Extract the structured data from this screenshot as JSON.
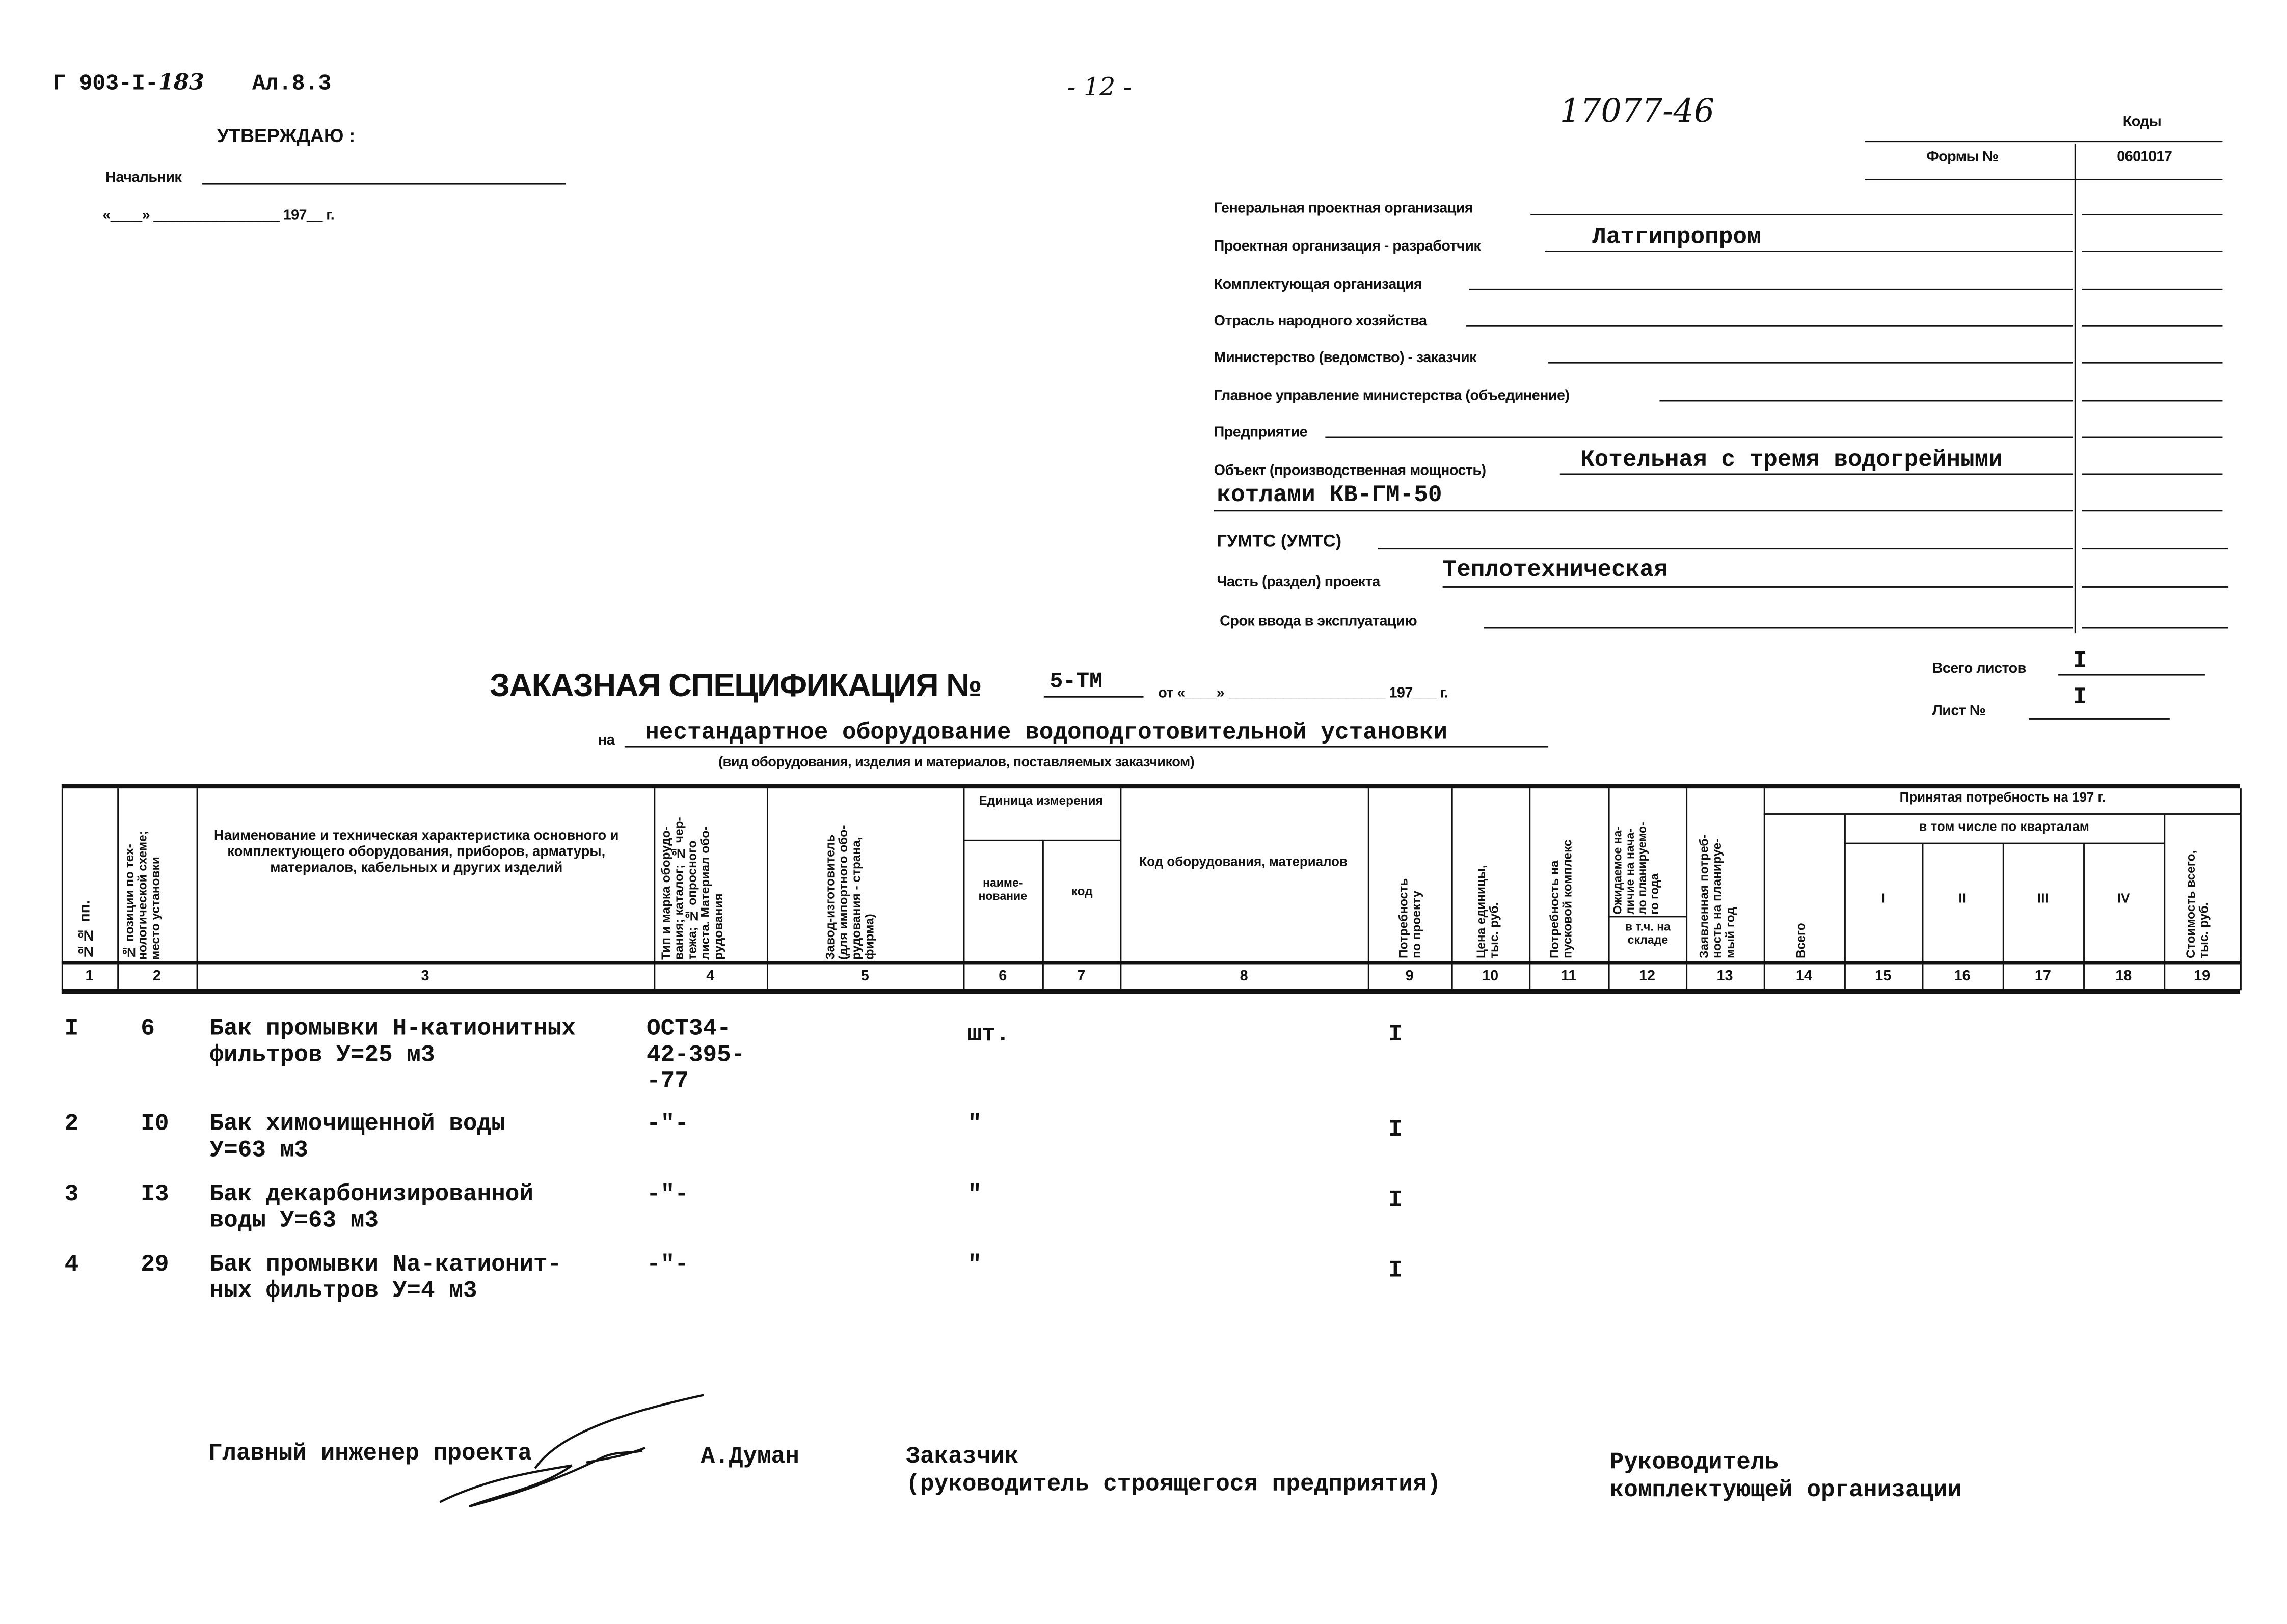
{
  "header": {
    "doc_code_prefix": "Г 903-I-",
    "doc_code_hand": "183",
    "album": "Ал.8.3",
    "page": "- 12 -",
    "inventory": "17077-46",
    "approve": "УТВЕРЖДАЮ :",
    "chief": "Начальник",
    "date_line": "«____» ________________ 197__ г."
  },
  "codes": {
    "title": "Коды",
    "form_label": "Формы №",
    "form_value": "0601017"
  },
  "fields": [
    {
      "label": "Генеральная проектная организация",
      "value": ""
    },
    {
      "label": "Проектная организация - разработчик",
      "value": "Латгипропром"
    },
    {
      "label": "Комплектующая организация",
      "value": ""
    },
    {
      "label": "Отрасль народного хозяйства",
      "value": ""
    },
    {
      "label": "Министерство (ведомство) - заказчик",
      "value": ""
    },
    {
      "label": "Главное управление министерства (объединение)",
      "value": ""
    },
    {
      "label": "Предприятие",
      "value": ""
    },
    {
      "label": "Объект (производственная мощность)",
      "value": "Котельная с тремя водогрейными",
      "value2": "котлами КВ-ГМ-50"
    },
    {
      "label": "ГУМТС (УМТС)",
      "value": ""
    },
    {
      "label": "Часть (раздел) проекта",
      "value": "Теплотехническая"
    },
    {
      "label": "Срок ввода в эксплуатацию",
      "value": ""
    }
  ],
  "spec": {
    "title": "ЗАКАЗНАЯ СПЕЦИФИКАЦИЯ №",
    "number": "5-ТМ",
    "from": "от «____» ____________________ 197___ г.",
    "on": "на",
    "subject": "нестандартное оборудование водоподготовительной установки",
    "subject_note": "(вид оборудования, изделия и материалов, поставляемых заказчиком)",
    "sheets_total_label": "Всего листов",
    "sheets_total": "I",
    "sheet_label": "Лист №",
    "sheet": "I"
  },
  "table": {
    "headers": {
      "c1": "№№ пп.",
      "c2": "№ позиции по тех-\nнологической схеме;\nместо установки",
      "c3": "Наименование и техническая характеристика основного и комплектующего оборудования, приборов, арматуры, материалов, кабельных и других изделий",
      "c4": "Тип и марка оборудо-\nвания; каталог; № чер-\nтежа; № опросного\nлиста. Материал обо-\nрудования",
      "c5": "Завод-изготовитель\n(для импортного обо-\nрудования - страна,\nфирма)",
      "unit": "Единица измерения",
      "c6": "наиме-нование",
      "c7": "код",
      "c8": "Код оборудования, материалов",
      "c9": "Потребность\nпо проекту",
      "c10": "Цена единицы,\nтыс. руб.",
      "c11": "Потребность на\nпусковой комплекс",
      "c12a": "Ожидаемое на-\nличие на нача-\nло планируемо-\nго года",
      "c12b": "в т.ч. на складе",
      "c13": "Заявленная потреб-\nность на планируе-\nмый год",
      "accepted": "Принятая потребность на 197   г.",
      "c14": "Всего",
      "quarters_label": "в том числе по кварталам",
      "q": [
        "I",
        "II",
        "III",
        "IV"
      ],
      "c19": "Стоимость всего,\nтыс. руб."
    },
    "col_numbers": [
      "1",
      "2",
      "3",
      "4",
      "5",
      "6",
      "7",
      "8",
      "9",
      "10",
      "11",
      "12",
      "13",
      "14",
      "15",
      "16",
      "17",
      "18",
      "19"
    ],
    "rows": [
      {
        "n": "I",
        "pos": "6",
        "name": [
          "Бак промывки Н-катионитных",
          "фильтров У=25 м3"
        ],
        "type": [
          "ОСТ34-",
          "42-395-",
          "-77"
        ],
        "unit": "шт.",
        "qty": "I"
      },
      {
        "n": "2",
        "pos": "I0",
        "name": [
          "Бак химочищенной воды",
          "У=63 м3"
        ],
        "type": [
          "-\"-"
        ],
        "unit": "\"",
        "qty": "I"
      },
      {
        "n": "3",
        "pos": "I3",
        "name": [
          "Бак декарбонизированной",
          "воды У=63 м3"
        ],
        "type": [
          "-\"-"
        ],
        "unit": "\"",
        "qty": "I"
      },
      {
        "n": "4",
        "pos": "29",
        "name": [
          "Бак промывки Na-катионит-",
          "ных фильтров У=4 м3"
        ],
        "type": [
          "-\"-"
        ],
        "unit": "\"",
        "qty": "I"
      }
    ]
  },
  "footer": {
    "chief_engineer": "Главный инженер проекта",
    "chief_engineer_name": "А.Думан",
    "customer": "Заказчик",
    "customer_note": "(руководитель строящегося предприятия)",
    "head": "Руководитель",
    "head_note": "комплектующей организации"
  }
}
